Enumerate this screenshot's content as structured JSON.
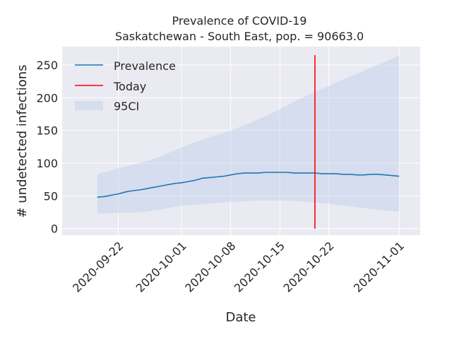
{
  "chart_data": {
    "type": "line",
    "title": "Prevalence of COVID-19",
    "subtitle": "Saskatchewan - South East, pop. = 90663.0",
    "xlabel": "Date",
    "ylabel": "# undetected infections",
    "xlim": [
      "2020-09-14",
      "2020-11-04"
    ],
    "ylim": [
      -10,
      278
    ],
    "xticks": [
      "2020-09-22",
      "2020-10-01",
      "2020-10-08",
      "2020-10-15",
      "2020-10-22",
      "2020-11-01"
    ],
    "yticks": [
      0,
      50,
      100,
      150,
      200,
      250
    ],
    "grid": true,
    "legend_position": "top-left",
    "colors": {
      "prevalence": "#1f77b4",
      "today": "#ff0000",
      "ci": "#aec7e8",
      "background": "#eaeaf2"
    },
    "series": [
      {
        "name": "Prevalence",
        "x": [
          "2020-09-19",
          "2020-09-20",
          "2020-09-21",
          "2020-09-22",
          "2020-09-23",
          "2020-09-24",
          "2020-09-25",
          "2020-09-26",
          "2020-09-27",
          "2020-09-28",
          "2020-09-29",
          "2020-09-30",
          "2020-10-01",
          "2020-10-02",
          "2020-10-03",
          "2020-10-04",
          "2020-10-05",
          "2020-10-06",
          "2020-10-07",
          "2020-10-08",
          "2020-10-09",
          "2020-10-10",
          "2020-10-11",
          "2020-10-12",
          "2020-10-13",
          "2020-10-14",
          "2020-10-15",
          "2020-10-16",
          "2020-10-17",
          "2020-10-18",
          "2020-10-19",
          "2020-10-20",
          "2020-10-21",
          "2020-10-22",
          "2020-10-23",
          "2020-10-24",
          "2020-10-25",
          "2020-10-26",
          "2020-10-27",
          "2020-10-28",
          "2020-10-29",
          "2020-10-30",
          "2020-10-31",
          "2020-11-01"
        ],
        "values": [
          48,
          49,
          51,
          53,
          56,
          58,
          59,
          61,
          63,
          65,
          67,
          69,
          70,
          72,
          74,
          77,
          78,
          79,
          80,
          82,
          84,
          85,
          85,
          85,
          86,
          86,
          86,
          86,
          85,
          85,
          85,
          85,
          84,
          84,
          84,
          83,
          83,
          82,
          82,
          83,
          83,
          82,
          81,
          80
        ]
      },
      {
        "name": "Today",
        "x": [
          "2020-10-20",
          "2020-10-20"
        ],
        "values": [
          0,
          265
        ]
      },
      {
        "name": "95CI",
        "x": [
          "2020-09-19",
          "2020-09-22",
          "2020-09-25",
          "2020-09-28",
          "2020-10-01",
          "2020-10-04",
          "2020-10-07",
          "2020-10-10",
          "2020-10-13",
          "2020-10-16",
          "2020-10-19",
          "2020-10-22",
          "2020-10-25",
          "2020-10-28",
          "2020-11-01"
        ],
        "lower": [
          23,
          24,
          25,
          29,
          35,
          37,
          40,
          42,
          43,
          43,
          41,
          38,
          34,
          30,
          26
        ],
        "upper": [
          83,
          92,
          100,
          110,
          124,
          136,
          146,
          158,
          172,
          188,
          204,
          218,
          232,
          246,
          264
        ]
      }
    ]
  }
}
